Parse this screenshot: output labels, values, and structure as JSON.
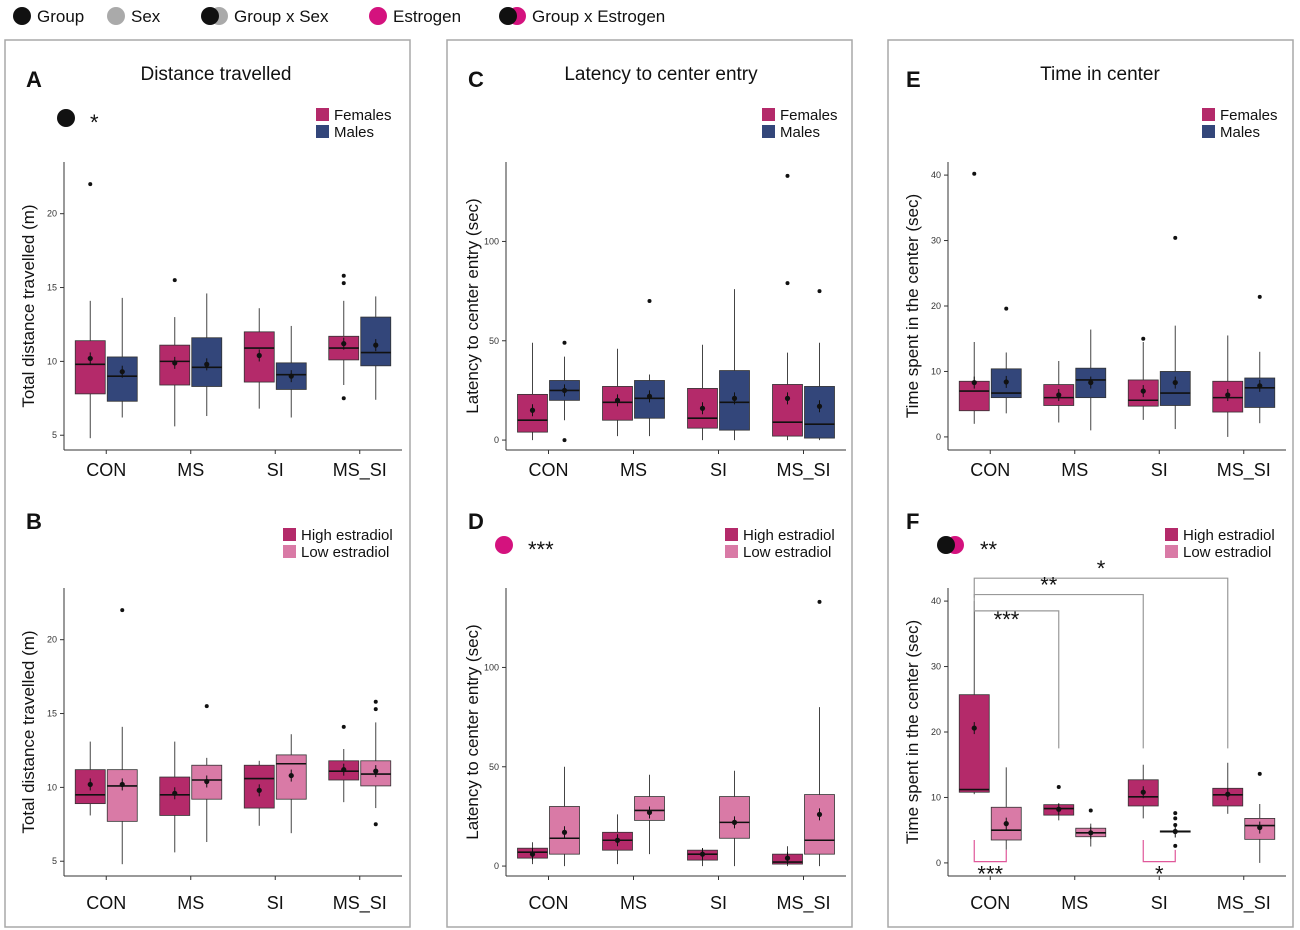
{
  "colors": {
    "females": "#b42a6a",
    "males": "#33467a",
    "high_estradiol": "#b42a6a",
    "low_estradiol": "#d97aa6",
    "estrogen": "#d4127e",
    "group": "#111111",
    "sex": "#aaaaaa",
    "bracket_gray": "#999999",
    "bracket_pink": "#e0589a"
  },
  "top_legend": [
    {
      "label": "Group",
      "swatch": "group"
    },
    {
      "label": "Sex",
      "swatch": "sex"
    },
    {
      "label": "Group x Sex",
      "swatch": "group-sex"
    },
    {
      "label": "Estrogen",
      "swatch": "estrogen"
    },
    {
      "label": "Group x Estrogen",
      "swatch": "group-estrogen"
    }
  ],
  "columns": [
    {
      "title": "Distance travelled"
    },
    {
      "title": "Latency to center entry"
    },
    {
      "title": "Time in center"
    }
  ],
  "chart_data": [
    {
      "letter": "A",
      "type": "boxplot",
      "ylabel": "Total distance travelled (m)",
      "categories": [
        "CON",
        "MS",
        "SI",
        "MS_SI"
      ],
      "ylim": [
        4,
        23.5
      ],
      "yticks": [
        5,
        10,
        15,
        20
      ],
      "legend": [
        "Females",
        "Males"
      ],
      "series_keys": [
        "females",
        "males"
      ],
      "effects": [
        {
          "type": "group",
          "stars": "*"
        }
      ],
      "boxes": [
        {
          "cat": 0,
          "s": 0,
          "whislo": 4.8,
          "q1": 7.8,
          "med": 9.8,
          "q3": 11.4,
          "whishi": 14.1,
          "mean": 10.2,
          "outliers": [
            22.0
          ]
        },
        {
          "cat": 0,
          "s": 1,
          "whislo": 6.2,
          "q1": 7.3,
          "med": 9.0,
          "q3": 10.3,
          "whishi": 14.3,
          "mean": 9.3,
          "outliers": []
        },
        {
          "cat": 1,
          "s": 0,
          "whislo": 5.6,
          "q1": 8.4,
          "med": 10.0,
          "q3": 11.1,
          "whishi": 13.0,
          "mean": 9.9,
          "outliers": [
            15.5
          ]
        },
        {
          "cat": 1,
          "s": 1,
          "whislo": 6.3,
          "q1": 8.3,
          "med": 9.6,
          "q3": 11.6,
          "whishi": 14.6,
          "mean": 9.8,
          "outliers": []
        },
        {
          "cat": 2,
          "s": 0,
          "whislo": 6.8,
          "q1": 8.6,
          "med": 10.9,
          "q3": 12.0,
          "whishi": 13.6,
          "mean": 10.4,
          "outliers": []
        },
        {
          "cat": 2,
          "s": 1,
          "whislo": 6.2,
          "q1": 8.1,
          "med": 9.1,
          "q3": 9.9,
          "whishi": 12.4,
          "mean": 9.0,
          "outliers": []
        },
        {
          "cat": 3,
          "s": 0,
          "whislo": 8.4,
          "q1": 10.1,
          "med": 10.9,
          "q3": 11.7,
          "whishi": 14.1,
          "mean": 11.2,
          "outliers": [
            15.3,
            15.8,
            7.5
          ]
        },
        {
          "cat": 3,
          "s": 1,
          "whislo": 7.4,
          "q1": 9.7,
          "med": 10.6,
          "q3": 13.0,
          "whishi": 14.4,
          "mean": 11.1,
          "outliers": []
        }
      ]
    },
    {
      "letter": "B",
      "type": "boxplot",
      "ylabel": "Total distance travelled (m)",
      "categories": [
        "CON",
        "MS",
        "SI",
        "MS_SI"
      ],
      "ylim": [
        4,
        23.5
      ],
      "yticks": [
        5,
        10,
        15,
        20
      ],
      "legend": [
        "High estradiol",
        "Low estradiol"
      ],
      "series_keys": [
        "high_estradiol",
        "low_estradiol"
      ],
      "effects": [],
      "boxes": [
        {
          "cat": 0,
          "s": 0,
          "whislo": 8.1,
          "q1": 8.9,
          "med": 9.5,
          "q3": 11.2,
          "whishi": 13.1,
          "mean": 10.2,
          "outliers": []
        },
        {
          "cat": 0,
          "s": 1,
          "whislo": 4.8,
          "q1": 7.7,
          "med": 10.1,
          "q3": 11.2,
          "whishi": 14.1,
          "mean": 10.2,
          "outliers": [
            22.0
          ]
        },
        {
          "cat": 1,
          "s": 0,
          "whislo": 5.6,
          "q1": 8.1,
          "med": 9.5,
          "q3": 10.7,
          "whishi": 13.1,
          "mean": 9.6,
          "outliers": []
        },
        {
          "cat": 1,
          "s": 1,
          "whislo": 6.3,
          "q1": 9.2,
          "med": 10.5,
          "q3": 11.5,
          "whishi": 12.0,
          "mean": 10.4,
          "outliers": [
            15.5
          ]
        },
        {
          "cat": 2,
          "s": 0,
          "whislo": 7.4,
          "q1": 8.6,
          "med": 10.6,
          "q3": 11.5,
          "whishi": 11.8,
          "mean": 9.8,
          "outliers": []
        },
        {
          "cat": 2,
          "s": 1,
          "whislo": 6.9,
          "q1": 9.2,
          "med": 11.6,
          "q3": 12.2,
          "whishi": 13.6,
          "mean": 10.8,
          "outliers": []
        },
        {
          "cat": 3,
          "s": 0,
          "whislo": 9.0,
          "q1": 10.5,
          "med": 11.1,
          "q3": 11.8,
          "whishi": 12.6,
          "mean": 11.2,
          "outliers": [
            14.1
          ]
        },
        {
          "cat": 3,
          "s": 1,
          "whislo": 8.6,
          "q1": 10.1,
          "med": 10.9,
          "q3": 11.8,
          "whishi": 14.4,
          "mean": 11.1,
          "outliers": [
            15.3,
            15.8,
            7.5
          ]
        }
      ]
    },
    {
      "letter": "C",
      "type": "boxplot",
      "ylabel": "Latency to center entry (sec)",
      "categories": [
        "CON",
        "MS",
        "SI",
        "MS_SI"
      ],
      "ylim": [
        -5,
        140
      ],
      "yticks": [
        0,
        50,
        100
      ],
      "legend": [
        "Females",
        "Males"
      ],
      "series_keys": [
        "females",
        "males"
      ],
      "effects": [],
      "boxes": [
        {
          "cat": 0,
          "s": 0,
          "whislo": 0,
          "q1": 4,
          "med": 10,
          "q3": 23,
          "whishi": 49,
          "mean": 15,
          "outliers": []
        },
        {
          "cat": 0,
          "s": 1,
          "whislo": 10,
          "q1": 20,
          "med": 25,
          "q3": 30,
          "whishi": 42,
          "mean": 25,
          "outliers": [
            49,
            0
          ]
        },
        {
          "cat": 1,
          "s": 0,
          "whislo": 2,
          "q1": 10,
          "med": 19,
          "q3": 27,
          "whishi": 46,
          "mean": 20,
          "outliers": []
        },
        {
          "cat": 1,
          "s": 1,
          "whislo": 2,
          "q1": 11,
          "med": 21,
          "q3": 30,
          "whishi": 33,
          "mean": 22,
          "outliers": [
            70
          ]
        },
        {
          "cat": 2,
          "s": 0,
          "whislo": 0,
          "q1": 6,
          "med": 11,
          "q3": 26,
          "whishi": 48,
          "mean": 16,
          "outliers": []
        },
        {
          "cat": 2,
          "s": 1,
          "whislo": 0,
          "q1": 5,
          "med": 19,
          "q3": 35,
          "whishi": 76,
          "mean": 21,
          "outliers": []
        },
        {
          "cat": 3,
          "s": 0,
          "whislo": 0,
          "q1": 2,
          "med": 9,
          "q3": 28,
          "whishi": 44,
          "mean": 21,
          "outliers": [
            79,
            133
          ]
        },
        {
          "cat": 3,
          "s": 1,
          "whislo": 0,
          "q1": 1,
          "med": 8,
          "q3": 27,
          "whishi": 49,
          "mean": 17,
          "outliers": [
            75
          ]
        }
      ]
    },
    {
      "letter": "D",
      "type": "boxplot",
      "ylabel": "Latency to center entry (sec)",
      "categories": [
        "CON",
        "MS",
        "SI",
        "MS_SI"
      ],
      "ylim": [
        -5,
        140
      ],
      "yticks": [
        0,
        50,
        100
      ],
      "legend": [
        "High estradiol",
        "Low estradiol"
      ],
      "series_keys": [
        "high_estradiol",
        "low_estradiol"
      ],
      "effects": [
        {
          "type": "estrogen",
          "stars": "***"
        }
      ],
      "boxes": [
        {
          "cat": 0,
          "s": 0,
          "whislo": 1,
          "q1": 4,
          "med": 7,
          "q3": 9,
          "whishi": 12,
          "mean": 6,
          "outliers": []
        },
        {
          "cat": 0,
          "s": 1,
          "whislo": 0,
          "q1": 6,
          "med": 14,
          "q3": 30,
          "whishi": 50,
          "mean": 17,
          "outliers": []
        },
        {
          "cat": 1,
          "s": 0,
          "whislo": 1,
          "q1": 8,
          "med": 13,
          "q3": 17,
          "whishi": 26,
          "mean": 13,
          "outliers": []
        },
        {
          "cat": 1,
          "s": 1,
          "whislo": 6,
          "q1": 23,
          "med": 28,
          "q3": 35,
          "whishi": 46,
          "mean": 27,
          "outliers": []
        },
        {
          "cat": 2,
          "s": 0,
          "whislo": 0,
          "q1": 3,
          "med": 6,
          "q3": 8,
          "whishi": 9,
          "mean": 6,
          "outliers": []
        },
        {
          "cat": 2,
          "s": 1,
          "whislo": 0,
          "q1": 14,
          "med": 22,
          "q3": 35,
          "whishi": 48,
          "mean": 22,
          "outliers": []
        },
        {
          "cat": 3,
          "s": 0,
          "whislo": 0,
          "q1": 1,
          "med": 2,
          "q3": 6,
          "whishi": 10,
          "mean": 4,
          "outliers": []
        },
        {
          "cat": 3,
          "s": 1,
          "whislo": 0,
          "q1": 6,
          "med": 13,
          "q3": 36,
          "whishi": 80,
          "mean": 26,
          "outliers": [
            133
          ]
        }
      ]
    },
    {
      "letter": "E",
      "type": "boxplot",
      "ylabel": "Time spent in the center (sec)",
      "categories": [
        "CON",
        "MS",
        "SI",
        "MS_SI"
      ],
      "ylim": [
        -2,
        42
      ],
      "yticks": [
        0,
        10,
        20,
        30,
        40
      ],
      "legend": [
        "Females",
        "Males"
      ],
      "series_keys": [
        "females",
        "males"
      ],
      "effects": [],
      "boxes": [
        {
          "cat": 0,
          "s": 0,
          "whislo": 2.0,
          "q1": 4.0,
          "med": 7.0,
          "q3": 8.5,
          "whishi": 14.5,
          "mean": 8.3,
          "outliers": [
            40.2
          ]
        },
        {
          "cat": 0,
          "s": 1,
          "whislo": 3.6,
          "q1": 6.0,
          "med": 6.7,
          "q3": 10.4,
          "whishi": 12.9,
          "mean": 8.4,
          "outliers": [
            19.6
          ]
        },
        {
          "cat": 1,
          "s": 0,
          "whislo": 2.2,
          "q1": 4.8,
          "med": 6.0,
          "q3": 8.0,
          "whishi": 11.6,
          "mean": 6.4,
          "outliers": []
        },
        {
          "cat": 1,
          "s": 1,
          "whislo": 1.0,
          "q1": 6.0,
          "med": 8.7,
          "q3": 10.5,
          "whishi": 16.4,
          "mean": 8.3,
          "outliers": []
        },
        {
          "cat": 2,
          "s": 0,
          "whislo": 2.6,
          "q1": 4.7,
          "med": 5.6,
          "q3": 8.7,
          "whishi": 14.5,
          "mean": 7.0,
          "outliers": [
            15.0
          ]
        },
        {
          "cat": 2,
          "s": 1,
          "whislo": 1.2,
          "q1": 4.8,
          "med": 6.7,
          "q3": 10.0,
          "whishi": 17.0,
          "mean": 8.3,
          "outliers": [
            30.4
          ]
        },
        {
          "cat": 3,
          "s": 0,
          "whislo": 0.0,
          "q1": 3.8,
          "med": 6.0,
          "q3": 8.5,
          "whishi": 15.5,
          "mean": 6.4,
          "outliers": []
        },
        {
          "cat": 3,
          "s": 1,
          "whislo": 2.1,
          "q1": 4.5,
          "med": 7.5,
          "q3": 9.0,
          "whishi": 13.0,
          "mean": 7.8,
          "outliers": [
            21.4
          ]
        }
      ]
    },
    {
      "letter": "F",
      "type": "boxplot",
      "ylabel": "Time spent in the center (sec)",
      "categories": [
        "CON",
        "MS",
        "SI",
        "MS_SI"
      ],
      "ylim": [
        -2,
        42
      ],
      "yticks": [
        0,
        10,
        20,
        30,
        40
      ],
      "legend": [
        "High estradiol",
        "Low estradiol"
      ],
      "series_keys": [
        "high_estradiol",
        "low_estradiol"
      ],
      "effects": [
        {
          "type": "group-estrogen",
          "stars": "**"
        }
      ],
      "boxes": [
        {
          "cat": 0,
          "s": 0,
          "whislo": 10.5,
          "q1": 10.8,
          "med": 11.2,
          "q3": 25.7,
          "whishi": 40.0,
          "mean": 20.6,
          "outliers": []
        },
        {
          "cat": 0,
          "s": 1,
          "whislo": 2.0,
          "q1": 3.5,
          "med": 5.0,
          "q3": 8.5,
          "whishi": 14.6,
          "mean": 6.0,
          "outliers": []
        },
        {
          "cat": 1,
          "s": 0,
          "whislo": 6.5,
          "q1": 7.3,
          "med": 8.3,
          "q3": 8.9,
          "whishi": 9.0,
          "mean": 8.2,
          "outliers": [
            11.6
          ]
        },
        {
          "cat": 1,
          "s": 1,
          "whislo": 2.5,
          "q1": 4.0,
          "med": 4.6,
          "q3": 5.3,
          "whishi": 6.0,
          "mean": 4.6,
          "outliers": [
            8.0
          ]
        },
        {
          "cat": 2,
          "s": 0,
          "whislo": 6.8,
          "q1": 8.7,
          "med": 10.1,
          "q3": 12.7,
          "whishi": 15.0,
          "mean": 10.8,
          "outliers": []
        },
        {
          "cat": 2,
          "s": 1,
          "whislo": 4.6,
          "q1": 4.7,
          "med": 4.8,
          "q3": 4.9,
          "whishi": 5.0,
          "mean": 4.8,
          "outliers": [
            5.8,
            6.8,
            7.6,
            2.6
          ]
        },
        {
          "cat": 3,
          "s": 0,
          "whislo": 7.5,
          "q1": 8.7,
          "med": 10.4,
          "q3": 11.4,
          "whishi": 15.3,
          "mean": 10.5,
          "outliers": []
        },
        {
          "cat": 3,
          "s": 1,
          "whislo": 0.0,
          "q1": 3.6,
          "med": 5.7,
          "q3": 6.8,
          "whishi": 9.0,
          "mean": 5.4,
          "outliers": [
            13.6
          ]
        }
      ],
      "brackets": [
        {
          "from": 0,
          "to": 3,
          "stars": "*",
          "color": "bracket_gray"
        },
        {
          "from": 0,
          "to": 2,
          "stars": "**",
          "color": "bracket_gray"
        },
        {
          "from": 0,
          "to": 1,
          "stars": "***",
          "color": "bracket_gray"
        },
        {
          "cat": 0,
          "within": true,
          "stars": "***",
          "color": "bracket_pink"
        },
        {
          "cat": 2,
          "within": true,
          "stars": "*",
          "color": "bracket_pink"
        }
      ]
    }
  ]
}
